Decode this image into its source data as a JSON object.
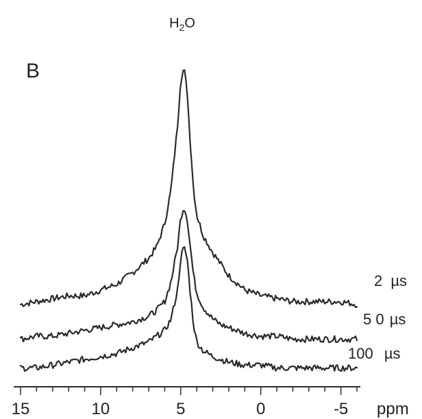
{
  "chart_data": {
    "type": "line",
    "panel_label": "B",
    "peak_annotation": {
      "text_main": "H",
      "text_sub": "2",
      "text_tail": "O",
      "x": 4.7
    },
    "xlabel": "ppm",
    "xlim": [
      15,
      -6
    ],
    "x_reversed": true,
    "xticks_major": [
      15,
      10,
      5,
      0,
      -5
    ],
    "xtick_labels": [
      "15",
      "10",
      "5",
      "0",
      "-5"
    ],
    "xticks_minor": [
      14,
      13,
      12,
      11,
      9,
      8,
      7,
      6,
      4,
      3,
      2,
      1,
      -1,
      -2,
      -3,
      -4,
      -6
    ],
    "y_units": "intensity (a.u., arbitrary)",
    "ylim": [
      0,
      1.2
    ],
    "grid": false,
    "series": [
      {
        "name": "2 µs",
        "label_main": "2",
        "label_unit": "µs",
        "baseline": 0.24,
        "x": [
          15,
          14,
          13,
          12,
          11,
          10,
          9,
          8,
          7,
          6.5,
          6,
          5.6,
          5.2,
          5.0,
          4.8,
          4.6,
          4.4,
          4.2,
          4.0,
          3.6,
          3.0,
          2.5,
          2.0,
          1.0,
          0,
          -1,
          -2,
          -3,
          -4,
          -5,
          -6
        ],
        "values": [
          0.0,
          0.01,
          0.02,
          0.03,
          0.03,
          0.05,
          0.07,
          0.11,
          0.16,
          0.2,
          0.28,
          0.4,
          0.62,
          0.78,
          0.82,
          0.74,
          0.56,
          0.4,
          0.31,
          0.24,
          0.18,
          0.14,
          0.1,
          0.05,
          0.03,
          0.02,
          0.01,
          0.01,
          0.01,
          0.01,
          0.0
        ]
      },
      {
        "name": "50 µs",
        "label_main": "5 0",
        "label_unit": "µs",
        "baseline": 0.12,
        "x": [
          15,
          14,
          13,
          12,
          11,
          10,
          9,
          8,
          7,
          6.5,
          6,
          5.6,
          5.2,
          5.0,
          4.8,
          4.6,
          4.4,
          4.2,
          4.0,
          3.6,
          3.0,
          2.5,
          2.0,
          1.0,
          0,
          -1,
          -2,
          -3,
          -4,
          -5,
          -6
        ],
        "values": [
          0.0,
          0.01,
          0.01,
          0.02,
          0.03,
          0.04,
          0.05,
          0.06,
          0.08,
          0.1,
          0.13,
          0.2,
          0.32,
          0.42,
          0.46,
          0.42,
          0.32,
          0.22,
          0.16,
          0.11,
          0.07,
          0.05,
          0.04,
          0.02,
          0.01,
          0.01,
          0.0,
          0.0,
          0.0,
          0.0,
          0.0
        ]
      },
      {
        "name": "100 µs",
        "label_main": "100",
        "label_unit": "µs",
        "baseline": 0.02,
        "x": [
          15,
          14,
          13,
          12,
          11,
          10,
          9,
          8,
          7,
          6.5,
          6,
          5.6,
          5.2,
          5.0,
          4.8,
          4.6,
          4.4,
          4.2,
          4.0,
          3.6,
          3.0,
          2.5,
          2.0,
          1.0,
          0,
          -1,
          -2,
          -3,
          -4,
          -5,
          -6
        ],
        "values": [
          0.0,
          0.0,
          0.01,
          0.02,
          0.03,
          0.04,
          0.05,
          0.07,
          0.09,
          0.11,
          0.13,
          0.17,
          0.27,
          0.38,
          0.42,
          0.38,
          0.26,
          0.15,
          0.09,
          0.06,
          0.04,
          0.03,
          0.02,
          0.01,
          0.01,
          0.0,
          0.0,
          0.0,
          0.0,
          0.0,
          0.0
        ]
      }
    ]
  }
}
